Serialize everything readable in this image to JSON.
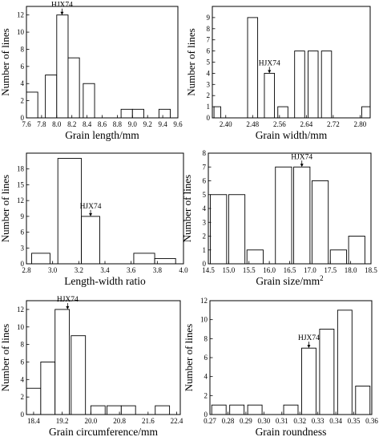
{
  "figure": {
    "annotation_label": "HJX74",
    "y_label": "Number of lines"
  },
  "chart_data": [
    {
      "type": "bar",
      "xlabel": "Grain length/mm",
      "ylabel": "Number of lines",
      "xlim": [
        7.6,
        9.6
      ],
      "ylim": [
        0,
        13
      ],
      "x_ticks": [
        7.6,
        7.8,
        8.0,
        8.2,
        8.4,
        8.6,
        8.8,
        9.0,
        9.2,
        9.4,
        9.6
      ],
      "x_tick_labels": [
        "7.6",
        "7.8",
        "8.0",
        "8.2",
        "8.4",
        "8.6",
        "8.8",
        "9.0",
        "9.2",
        "9.4",
        "9.6"
      ],
      "y_ticks": [
        0,
        2,
        4,
        6,
        8,
        10,
        12
      ],
      "y_tick_labels": [
        "0",
        "2",
        "4",
        "6",
        "8",
        "10",
        "12"
      ],
      "bins": [
        {
          "from": 7.6,
          "to": 7.75,
          "value": 3
        },
        {
          "from": 7.85,
          "to": 8.0,
          "value": 5
        },
        {
          "from": 8.0,
          "to": 8.15,
          "value": 12
        },
        {
          "from": 8.15,
          "to": 8.3,
          "value": 7
        },
        {
          "from": 8.35,
          "to": 8.5,
          "value": 4
        },
        {
          "from": 8.85,
          "to": 9.0,
          "value": 1
        },
        {
          "from": 9.0,
          "to": 9.15,
          "value": 1
        },
        {
          "from": 9.35,
          "to": 9.5,
          "value": 1
        }
      ],
      "annotation": {
        "label": "HJX74",
        "x": 8.07,
        "y": 12
      }
    },
    {
      "type": "bar",
      "xlabel": "Grain width/mm",
      "ylabel": "Number of lines",
      "xlim": [
        2.36,
        2.83
      ],
      "ylim": [
        0,
        10
      ],
      "x_ticks": [
        2.4,
        2.48,
        2.56,
        2.64,
        2.72,
        2.8
      ],
      "x_tick_labels": [
        "2.40",
        "2.48",
        "2.56",
        "2.64",
        "2.72",
        "2.80"
      ],
      "y_ticks": [
        0,
        1,
        2,
        3,
        4,
        5,
        6,
        7,
        8,
        9
      ],
      "y_tick_labels": [
        "0",
        "1",
        "2",
        "3",
        "4",
        "5",
        "6",
        "7",
        "8",
        "9"
      ],
      "bins": [
        {
          "from": 2.365,
          "to": 2.385,
          "value": 1
        },
        {
          "from": 2.465,
          "to": 2.495,
          "value": 9
        },
        {
          "from": 2.515,
          "to": 2.545,
          "value": 4
        },
        {
          "from": 2.555,
          "to": 2.585,
          "value": 1
        },
        {
          "from": 2.605,
          "to": 2.635,
          "value": 6
        },
        {
          "from": 2.645,
          "to": 2.675,
          "value": 6
        },
        {
          "from": 2.685,
          "to": 2.715,
          "value": 6
        },
        {
          "from": 2.805,
          "to": 2.83,
          "value": 1
        }
      ],
      "annotation": {
        "label": "HJX74",
        "x": 2.53,
        "y": 4
      }
    },
    {
      "type": "bar",
      "xlabel": "Length-width ratio",
      "ylabel": "Number of lines",
      "xlim": [
        2.8,
        4.0
      ],
      "ylim": [
        0,
        21
      ],
      "x_ticks": [
        2.8,
        3.0,
        3.2,
        3.4,
        3.6,
        3.8,
        4.0
      ],
      "x_tick_labels": [
        "2.8",
        "3.0",
        "3.2",
        "3.4",
        "3.6",
        "3.8",
        "4.0"
      ],
      "y_ticks": [
        0,
        3,
        6,
        9,
        12,
        15,
        18
      ],
      "y_tick_labels": [
        "0",
        "3",
        "6",
        "9",
        "12",
        "15",
        "18"
      ],
      "bins": [
        {
          "from": 2.84,
          "to": 2.98,
          "value": 2
        },
        {
          "from": 3.04,
          "to": 3.22,
          "value": 20
        },
        {
          "from": 3.22,
          "to": 3.36,
          "value": 9
        },
        {
          "from": 3.62,
          "to": 3.78,
          "value": 2
        },
        {
          "from": 3.78,
          "to": 3.94,
          "value": 1
        }
      ],
      "annotation": {
        "label": "HJX74",
        "x": 3.29,
        "y": 9
      }
    },
    {
      "type": "bar",
      "xlabel": "Grain size/mm²",
      "ylabel": "Number of lines",
      "xlim": [
        14.5,
        18.5
      ],
      "ylim": [
        0,
        8
      ],
      "x_ticks": [
        14.5,
        15.0,
        15.5,
        16.0,
        16.5,
        17.0,
        17.5,
        18.0,
        18.5
      ],
      "x_tick_labels": [
        "14.5",
        "15.0",
        "15.5",
        "16.0",
        "16.5",
        "17.0",
        "17.5",
        "18.0",
        "18.5"
      ],
      "y_ticks": [
        0,
        1,
        2,
        3,
        4,
        5,
        6,
        7,
        8
      ],
      "y_tick_labels": [
        "0",
        "1",
        "2",
        "3",
        "4",
        "5",
        "6",
        "7",
        "8"
      ],
      "bins": [
        {
          "from": 14.55,
          "to": 14.95,
          "value": 5
        },
        {
          "from": 15.0,
          "to": 15.4,
          "value": 5
        },
        {
          "from": 15.45,
          "to": 15.85,
          "value": 1
        },
        {
          "from": 16.15,
          "to": 16.55,
          "value": 7
        },
        {
          "from": 16.6,
          "to": 17.0,
          "value": 7
        },
        {
          "from": 17.05,
          "to": 17.45,
          "value": 6
        },
        {
          "from": 17.5,
          "to": 17.9,
          "value": 1
        },
        {
          "from": 17.95,
          "to": 18.35,
          "value": 2
        }
      ],
      "annotation": {
        "label": "HJX74",
        "x": 16.8,
        "y": 7
      }
    },
    {
      "type": "bar",
      "xlabel": "Grain circumference/mm",
      "ylabel": "Number of lines",
      "xlim": [
        18.2,
        22.5
      ],
      "ylim": [
        0,
        13
      ],
      "x_ticks": [
        18.4,
        19.2,
        20.0,
        20.8,
        21.6,
        22.4
      ],
      "x_tick_labels": [
        "18.4",
        "19.2",
        "20.0",
        "20.8",
        "21.6",
        "22.4"
      ],
      "y_ticks": [
        0,
        2,
        4,
        6,
        8,
        10,
        12
      ],
      "y_tick_labels": [
        "0",
        "2",
        "4",
        "6",
        "8",
        "10",
        "12"
      ],
      "bins": [
        {
          "from": 18.2,
          "to": 18.6,
          "value": 3
        },
        {
          "from": 18.6,
          "to": 19.0,
          "value": 6
        },
        {
          "from": 19.0,
          "to": 19.4,
          "value": 12
        },
        {
          "from": 19.45,
          "to": 19.85,
          "value": 9
        },
        {
          "from": 20.0,
          "to": 20.4,
          "value": 1
        },
        {
          "from": 20.45,
          "to": 20.85,
          "value": 1
        },
        {
          "from": 20.85,
          "to": 21.25,
          "value": 1
        },
        {
          "from": 21.8,
          "to": 22.2,
          "value": 1
        }
      ],
      "annotation": {
        "label": "HJX74",
        "x": 19.35,
        "y": 12
      }
    },
    {
      "type": "bar",
      "xlabel": "Grain roundness",
      "ylabel": "Number of lines",
      "xlim": [
        0.27,
        0.36
      ],
      "ylim": [
        0,
        12
      ],
      "x_ticks": [
        0.27,
        0.28,
        0.29,
        0.3,
        0.31,
        0.32,
        0.33,
        0.34,
        0.35,
        0.36
      ],
      "x_tick_labels": [
        "0.27",
        "0.28",
        "0.29",
        "0.30",
        "0.31",
        "0.32",
        "0.33",
        "0.34",
        "0.35",
        "0.36"
      ],
      "y_ticks": [
        0,
        2,
        4,
        6,
        8,
        10,
        12
      ],
      "y_tick_labels": [
        "0",
        "2",
        "4",
        "6",
        "8",
        "10",
        "12"
      ],
      "bins": [
        {
          "from": 0.271,
          "to": 0.279,
          "value": 1
        },
        {
          "from": 0.281,
          "to": 0.289,
          "value": 1
        },
        {
          "from": 0.291,
          "to": 0.299,
          "value": 1
        },
        {
          "from": 0.311,
          "to": 0.319,
          "value": 1
        },
        {
          "from": 0.321,
          "to": 0.329,
          "value": 7
        },
        {
          "from": 0.331,
          "to": 0.339,
          "value": 9
        },
        {
          "from": 0.341,
          "to": 0.349,
          "value": 11
        },
        {
          "from": 0.351,
          "to": 0.359,
          "value": 3
        }
      ],
      "annotation": {
        "label": "HJX74",
        "x": 0.325,
        "y": 7
      }
    }
  ]
}
